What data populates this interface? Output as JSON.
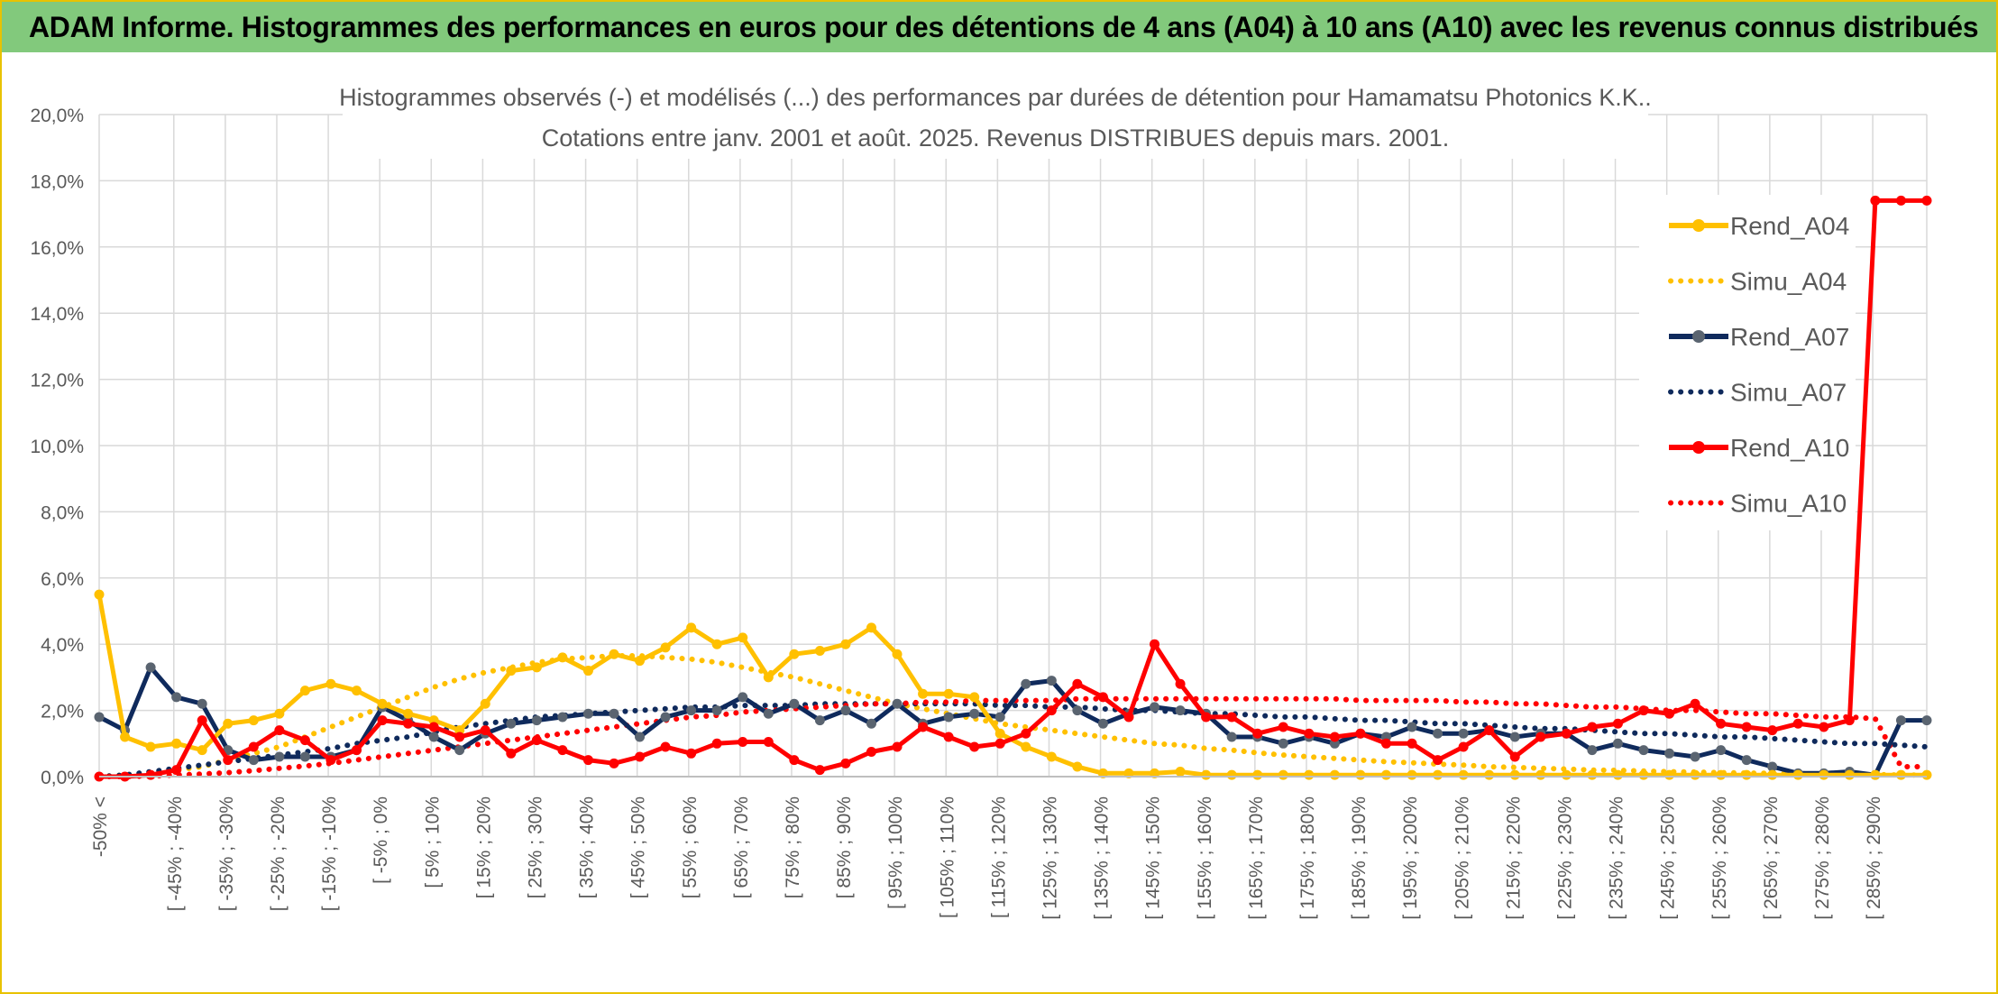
{
  "page": {
    "banner_title": "ADAM Informe. Histogrammes des performances en euros pour des détentions de 4 ans (A04) à 10 ans (A10) avec les revenus connus distribués"
  },
  "colors": {
    "A04": "#ffc000",
    "A07": "#0f2a5c",
    "A07_marker": "#5a6470",
    "A10": "#ff0000",
    "grid": "#d9d9d9",
    "text": "#595959",
    "banner": "#82c97c",
    "frame": "#e8c200"
  },
  "chart_data": {
    "type": "line",
    "title": "Histogrammes observés (-) et modélisés (...) des performances par durées de détention pour Hamamatsu Photonics K.K..",
    "subtitle": "Cotations entre janv. 2001 et août. 2025. Revenus DISTRIBUES depuis mars. 2001.",
    "xlabel": "",
    "ylabel": "",
    "ylim": [
      0,
      20
    ],
    "yticks": [
      "0,0%",
      "2,0%",
      "4,0%",
      "6,0%",
      "8,0%",
      "10,0%",
      "12,0%",
      "14,0%",
      "16,0%",
      "18,0%",
      "20,0%"
    ],
    "grid": true,
    "legend_position": "right",
    "x_tick_labels": [
      "-50% <",
      "[ -45% ; -40%",
      "[ -35% ; -30%",
      "[ -25% ; -20%",
      "[ -15% ; -10%",
      "[ -5% ; 0%",
      "[ 5% ; 10%",
      "[ 15% ; 20%",
      "[ 25% ; 30%",
      "[ 35% ; 40%",
      "[ 45% ; 50%",
      "[ 55% ; 60%",
      "[ 65% ; 70%",
      "[ 75% ; 80%",
      "[ 85% ; 90%",
      "[ 95% ; 100%",
      "[ 105% ; 110%",
      "[ 115% ; 120%",
      "[ 125% ; 130%",
      "[ 135% ; 140%",
      "[ 145% ; 150%",
      "[ 155% ; 160%",
      "[ 165% ; 170%",
      "[ 175% ; 180%",
      "[ 185% ; 190%",
      "[ 195% ; 200%",
      "[ 205% ; 210%",
      "[ 215% ; 220%",
      "[ 225% ; 230%",
      "[ 235% ; 240%",
      "[ 245% ; 250%",
      "[ 255% ; 260%",
      "[ 265% ; 270%",
      "[ 275% ; 280%",
      "[ 285% ; 290%"
    ],
    "series": [
      {
        "name": "Rend_A04",
        "kind": "observed",
        "color_key": "A04",
        "values": [
          5.5,
          1.2,
          0.9,
          1.0,
          0.8,
          1.6,
          1.7,
          1.9,
          2.6,
          2.8,
          2.6,
          2.2,
          1.9,
          1.7,
          1.4,
          2.2,
          3.2,
          3.3,
          3.6,
          3.2,
          3.7,
          3.5,
          3.9,
          4.5,
          4.0,
          4.2,
          3.0,
          3.7,
          3.8,
          4.0,
          4.5,
          3.7,
          2.5,
          2.5,
          2.4,
          1.3,
          0.9,
          0.6,
          0.3,
          0.1,
          0.1,
          0.1,
          0.15,
          0.05,
          0.05,
          0.05,
          0.05,
          0.05,
          0.05,
          0.05,
          0.05,
          0.05,
          0.05,
          0.05,
          0.05,
          0.05,
          0.05,
          0.05,
          0.05,
          0.05,
          0.05,
          0.05,
          0.05,
          0.05,
          0.05,
          0.05,
          0.05,
          0.05,
          0.05,
          0.05,
          0.05,
          0.05
        ]
      },
      {
        "name": "Simu_A04",
        "kind": "model",
        "color_key": "A04",
        "values": [
          0.0,
          0.05,
          0.1,
          0.2,
          0.3,
          0.5,
          0.7,
          0.9,
          1.2,
          1.5,
          1.8,
          2.1,
          2.4,
          2.7,
          2.95,
          3.15,
          3.3,
          3.45,
          3.55,
          3.6,
          3.65,
          3.65,
          3.6,
          3.55,
          3.45,
          3.3,
          3.15,
          3.0,
          2.8,
          2.6,
          2.4,
          2.2,
          2.05,
          1.9,
          1.75,
          1.6,
          1.5,
          1.4,
          1.3,
          1.2,
          1.1,
          1.0,
          0.95,
          0.85,
          0.8,
          0.72,
          0.65,
          0.6,
          0.55,
          0.5,
          0.45,
          0.42,
          0.38,
          0.35,
          0.3,
          0.28,
          0.25,
          0.23,
          0.2,
          0.19,
          0.17,
          0.15,
          0.14,
          0.12,
          0.11,
          0.1,
          0.09,
          0.08,
          0.07,
          0.06,
          0.05,
          0.05
        ]
      },
      {
        "name": "Rend_A07",
        "kind": "observed",
        "color_key": "A07",
        "values": [
          1.8,
          1.4,
          3.3,
          2.4,
          2.2,
          0.8,
          0.5,
          0.6,
          0.6,
          0.6,
          0.8,
          2.1,
          1.7,
          1.2,
          0.8,
          1.3,
          1.6,
          1.7,
          1.8,
          1.9,
          1.9,
          1.2,
          1.8,
          2.0,
          2.0,
          2.4,
          1.9,
          2.2,
          1.7,
          2.0,
          1.6,
          2.2,
          1.6,
          1.8,
          1.9,
          1.8,
          2.8,
          2.9,
          2.0,
          1.6,
          1.9,
          2.1,
          2.0,
          1.9,
          1.2,
          1.2,
          1.0,
          1.2,
          1.0,
          1.3,
          1.2,
          1.5,
          1.3,
          1.3,
          1.4,
          1.2,
          1.3,
          1.3,
          0.8,
          1.0,
          0.8,
          0.7,
          0.6,
          0.8,
          0.5,
          0.3,
          0.1,
          0.1,
          0.15,
          0.05,
          1.7,
          1.7
        ]
      },
      {
        "name": "Simu_A07",
        "kind": "model",
        "color_key": "A07",
        "values": [
          0.0,
          0.05,
          0.15,
          0.25,
          0.35,
          0.45,
          0.55,
          0.65,
          0.75,
          0.85,
          1.0,
          1.1,
          1.2,
          1.35,
          1.5,
          1.6,
          1.7,
          1.8,
          1.85,
          1.9,
          1.95,
          2.0,
          2.05,
          2.1,
          2.1,
          2.15,
          2.15,
          2.15,
          2.2,
          2.2,
          2.2,
          2.2,
          2.2,
          2.2,
          2.2,
          2.15,
          2.15,
          2.1,
          2.1,
          2.05,
          2.0,
          2.0,
          1.95,
          1.9,
          1.9,
          1.85,
          1.8,
          1.8,
          1.75,
          1.7,
          1.7,
          1.65,
          1.6,
          1.6,
          1.55,
          1.5,
          1.45,
          1.45,
          1.4,
          1.35,
          1.3,
          1.3,
          1.25,
          1.2,
          1.2,
          1.15,
          1.1,
          1.05,
          1.0,
          1.0,
          0.95,
          0.9
        ]
      },
      {
        "name": "Rend_A10",
        "kind": "observed",
        "color_key": "A10",
        "values": [
          0.0,
          0.0,
          0.05,
          0.2,
          1.7,
          0.5,
          0.9,
          1.4,
          1.1,
          0.5,
          0.8,
          1.7,
          1.6,
          1.5,
          1.2,
          1.4,
          0.7,
          1.1,
          0.8,
          0.5,
          0.4,
          0.6,
          0.9,
          0.7,
          1.0,
          1.05,
          1.05,
          0.5,
          0.2,
          0.4,
          0.75,
          0.9,
          1.5,
          1.2,
          0.9,
          1.0,
          1.3,
          2.0,
          2.8,
          2.4,
          1.8,
          4.0,
          2.8,
          1.8,
          1.8,
          1.3,
          1.5,
          1.3,
          1.2,
          1.3,
          1.0,
          1.0,
          0.5,
          0.9,
          1.4,
          0.6,
          1.2,
          1.3,
          1.5,
          1.6,
          2.0,
          1.9,
          2.2,
          1.6,
          1.5,
          1.4,
          1.6,
          1.5,
          1.7,
          17.4,
          17.4,
          17.4
        ]
      },
      {
        "name": "Simu_A10",
        "kind": "model",
        "color_key": "A10",
        "values": [
          0.0,
          0.0,
          0.02,
          0.05,
          0.08,
          0.12,
          0.18,
          0.25,
          0.32,
          0.4,
          0.5,
          0.6,
          0.7,
          0.8,
          0.9,
          1.0,
          1.1,
          1.2,
          1.3,
          1.4,
          1.5,
          1.6,
          1.7,
          1.8,
          1.85,
          1.95,
          2.0,
          2.05,
          2.1,
          2.15,
          2.2,
          2.2,
          2.25,
          2.25,
          2.3,
          2.3,
          2.3,
          2.3,
          2.35,
          2.35,
          2.35,
          2.35,
          2.35,
          2.35,
          2.35,
          2.35,
          2.35,
          2.35,
          2.35,
          2.3,
          2.3,
          2.3,
          2.3,
          2.25,
          2.25,
          2.2,
          2.2,
          2.15,
          2.1,
          2.1,
          2.05,
          2.0,
          2.0,
          1.95,
          1.9,
          1.9,
          1.85,
          1.8,
          1.8,
          1.75,
          0.3,
          0.3
        ]
      }
    ]
  }
}
